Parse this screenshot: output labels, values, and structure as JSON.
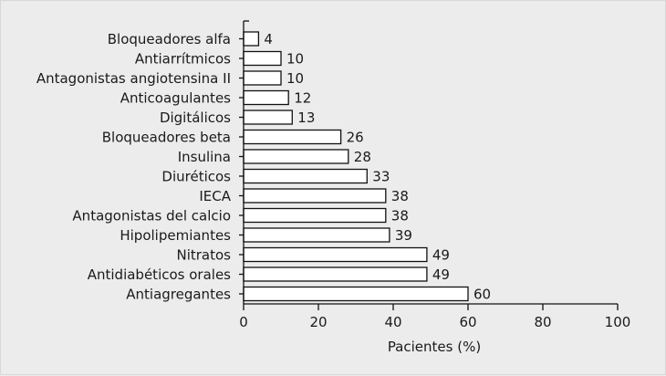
{
  "chart_data": {
    "type": "bar",
    "orientation": "horizontal",
    "categories": [
      "Bloqueadores alfa",
      "Antiarrítmicos",
      "Antagonistas angiotensina II",
      "Anticoagulantes",
      "Digitálicos",
      "Bloqueadores beta",
      "Insulina",
      "Diuréticos",
      "IECA",
      "Antagonistas del calcio",
      "Hipolipemiantes",
      "Nitratos",
      "Antidiabéticos orales",
      "Antiagregantes"
    ],
    "values": [
      4,
      10,
      10,
      12,
      13,
      26,
      28,
      33,
      38,
      38,
      39,
      49,
      49,
      60
    ],
    "value_labels": [
      "4",
      "10",
      "10",
      "12",
      "13",
      "26",
      "28",
      "33",
      "38",
      "38",
      "39",
      "49",
      "49",
      "60"
    ],
    "xlabel": "Pacientes (%)",
    "ylabel": "",
    "xlim": [
      0,
      100
    ],
    "xticks": [
      0,
      20,
      40,
      60,
      80,
      100
    ],
    "xtick_labels": [
      "0",
      "20",
      "40",
      "60",
      "80",
      "100"
    ],
    "grid": false,
    "colors": {
      "bar_fill": "#ffffff",
      "bar_stroke": "#111111",
      "background": "#ececec"
    }
  }
}
